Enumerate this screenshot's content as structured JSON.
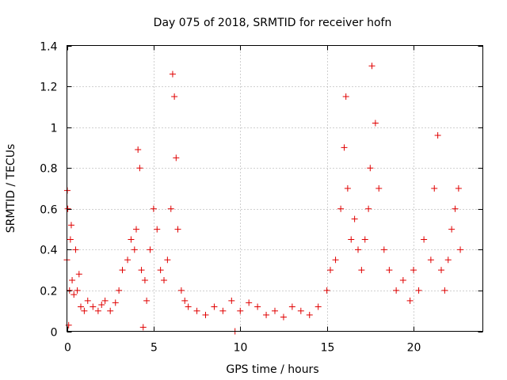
{
  "chart_data": {
    "type": "scatter",
    "title": "Day 075 of 2018, SRMTID for receiver hofn",
    "xlabel": "GPS time / hours",
    "ylabel": "SRMTID / TECUs",
    "xlim": [
      0,
      24
    ],
    "ylim": [
      0,
      1.4
    ],
    "xticks": [
      0,
      5,
      10,
      15,
      20
    ],
    "xtick_labels": [
      "0",
      "5",
      "10",
      "15",
      "20"
    ],
    "yticks": [
      0,
      0.2,
      0.4,
      0.6,
      0.8,
      1,
      1.2,
      1.4
    ],
    "ytick_labels": [
      "0",
      "0.2",
      "0.4",
      "0.6",
      "0.8",
      "1",
      "1.2",
      "1.4"
    ],
    "grid": true,
    "marker": "+",
    "colors": {
      "series": "#e00000",
      "grid": "#a0a0a0",
      "frame": "#000000"
    },
    "series": [
      {
        "name": "SRMTID",
        "x": [
          0.0,
          0.02,
          0.05,
          0.1,
          0.15,
          0.2,
          0.25,
          0.3,
          0.4,
          0.5,
          0.6,
          0.7,
          0.8,
          1.0,
          1.2,
          1.5,
          1.8,
          2.0,
          2.2,
          2.5,
          2.8,
          3.0,
          3.2,
          3.5,
          3.7,
          3.9,
          4.0,
          4.1,
          4.2,
          4.3,
          4.4,
          4.5,
          4.6,
          4.8,
          5.0,
          5.2,
          5.4,
          5.6,
          5.8,
          6.0,
          6.1,
          6.2,
          6.3,
          6.4,
          6.6,
          6.8,
          7.0,
          7.5,
          8.0,
          8.5,
          9.0,
          9.5,
          9.7,
          10.0,
          10.5,
          11.0,
          11.5,
          12.0,
          12.5,
          13.0,
          13.5,
          14.0,
          14.5,
          15.0,
          15.2,
          15.5,
          15.8,
          16.0,
          16.1,
          16.2,
          16.4,
          16.6,
          16.8,
          17.0,
          17.2,
          17.4,
          17.5,
          17.6,
          17.8,
          18.0,
          18.3,
          18.6,
          19.0,
          19.4,
          19.8,
          20.0,
          20.3,
          20.6,
          21.0,
          21.2,
          21.4,
          21.6,
          21.8,
          22.0,
          22.2,
          22.4,
          22.6,
          22.7
        ],
        "y": [
          0.35,
          0.69,
          0.6,
          0.03,
          0.2,
          0.45,
          0.52,
          0.25,
          0.18,
          0.4,
          0.2,
          0.28,
          0.12,
          0.1,
          0.15,
          0.12,
          0.1,
          0.13,
          0.15,
          0.1,
          0.14,
          0.2,
          0.3,
          0.35,
          0.45,
          0.4,
          0.5,
          0.89,
          0.8,
          0.3,
          0.02,
          0.25,
          0.15,
          0.4,
          0.6,
          0.5,
          0.3,
          0.25,
          0.35,
          0.6,
          1.26,
          1.15,
          0.85,
          0.5,
          0.2,
          0.15,
          0.12,
          0.1,
          0.08,
          0.12,
          0.1,
          0.15,
          0.0,
          0.1,
          0.14,
          0.12,
          0.08,
          0.1,
          0.07,
          0.12,
          0.1,
          0.08,
          0.12,
          0.2,
          0.3,
          0.35,
          0.6,
          0.9,
          1.15,
          0.7,
          0.45,
          0.55,
          0.4,
          0.3,
          0.45,
          0.6,
          0.8,
          1.3,
          1.02,
          0.7,
          0.4,
          0.3,
          0.2,
          0.25,
          0.15,
          0.3,
          0.2,
          0.45,
          0.35,
          0.7,
          0.96,
          0.3,
          0.2,
          0.35,
          0.5,
          0.6,
          0.7,
          0.4
        ]
      }
    ]
  }
}
